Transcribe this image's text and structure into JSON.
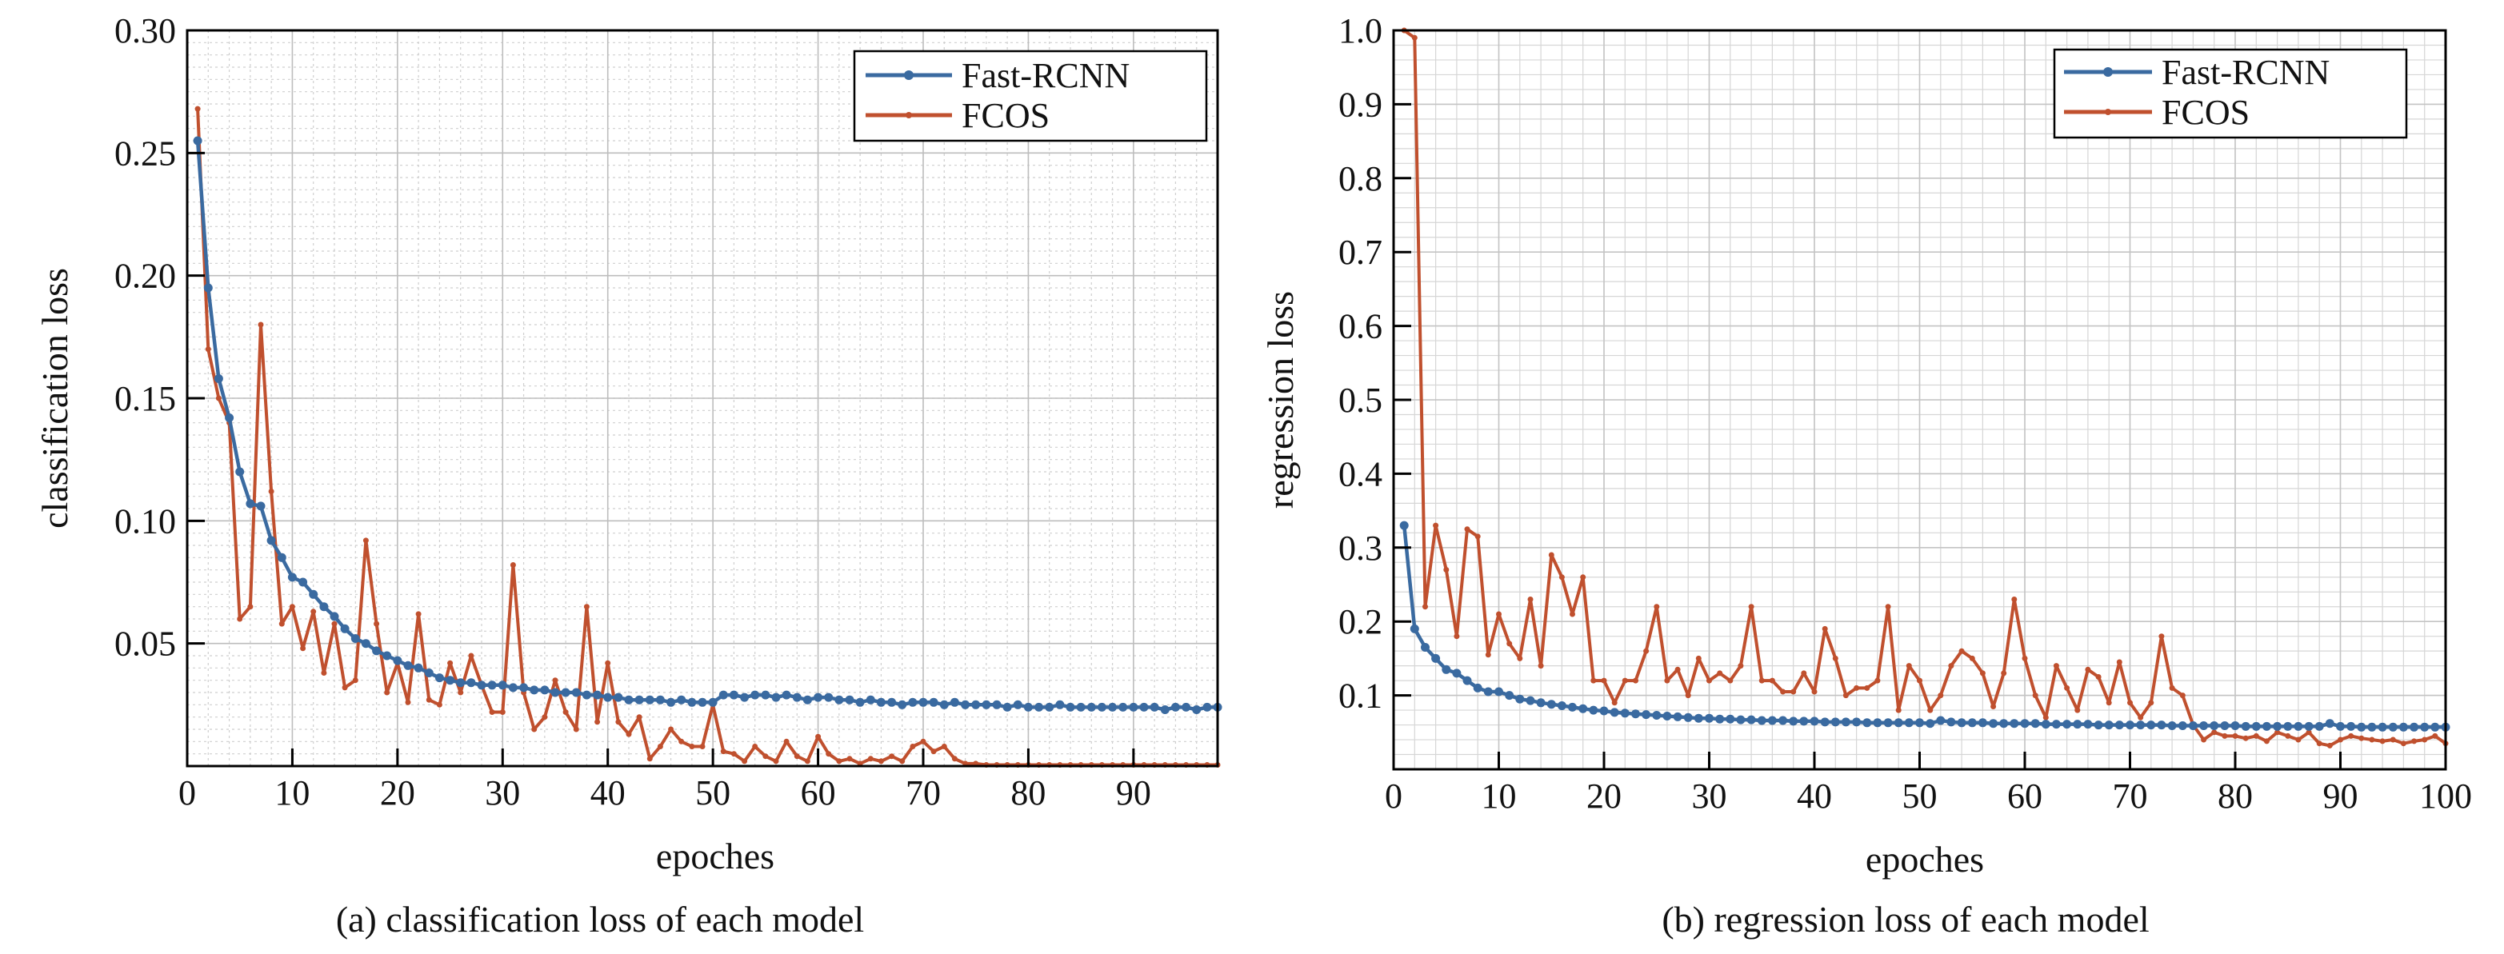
{
  "chart_data": [
    {
      "type": "line",
      "caption": "(a) classification loss of each model",
      "xlabel": "epoches",
      "ylabel": "classification loss",
      "xlim": [
        0,
        98
      ],
      "ylim": [
        0,
        0.3
      ],
      "xticks": [
        0,
        10,
        20,
        30,
        40,
        50,
        60,
        70,
        80,
        90
      ],
      "xtick_labels": [
        "0",
        "10",
        "20",
        "30",
        "40",
        "50",
        "60",
        "70",
        "80",
        "90"
      ],
      "yticks": [
        0.05,
        0.1,
        0.15,
        0.2,
        0.25,
        0.3
      ],
      "ytick_labels": [
        "0.05",
        "0.10",
        "0.15",
        "0.20",
        "0.25",
        "0.30"
      ],
      "grid": true,
      "legend": "top-right",
      "series": [
        {
          "name": "Fast-RCNN",
          "color": "#3a6aa0",
          "x": [
            1,
            2,
            3,
            4,
            5,
            6,
            7,
            8,
            9,
            10,
            11,
            12,
            13,
            14,
            15,
            16,
            17,
            18,
            19,
            20,
            21,
            22,
            23,
            24,
            25,
            26,
            27,
            28,
            29,
            30,
            31,
            32,
            33,
            34,
            35,
            36,
            37,
            38,
            39,
            40,
            41,
            42,
            43,
            44,
            45,
            46,
            47,
            48,
            49,
            50,
            51,
            52,
            53,
            54,
            55,
            56,
            57,
            58,
            59,
            60,
            61,
            62,
            63,
            64,
            65,
            66,
            67,
            68,
            69,
            70,
            71,
            72,
            73,
            74,
            75,
            76,
            77,
            78,
            79,
            80,
            81,
            82,
            83,
            84,
            85,
            86,
            87,
            88,
            89,
            90,
            91,
            92,
            93,
            94,
            95,
            96,
            97,
            98
          ],
          "y": [
            0.255,
            0.195,
            0.158,
            0.142,
            0.12,
            0.107,
            0.106,
            0.092,
            0.085,
            0.077,
            0.075,
            0.07,
            0.065,
            0.061,
            0.056,
            0.052,
            0.05,
            0.047,
            0.045,
            0.043,
            0.041,
            0.04,
            0.038,
            0.036,
            0.035,
            0.034,
            0.034,
            0.033,
            0.033,
            0.033,
            0.032,
            0.032,
            0.031,
            0.031,
            0.03,
            0.03,
            0.03,
            0.029,
            0.029,
            0.028,
            0.028,
            0.027,
            0.027,
            0.027,
            0.027,
            0.026,
            0.027,
            0.026,
            0.026,
            0.026,
            0.029,
            0.029,
            0.028,
            0.029,
            0.029,
            0.028,
            0.029,
            0.028,
            0.027,
            0.028,
            0.028,
            0.027,
            0.027,
            0.026,
            0.027,
            0.026,
            0.026,
            0.025,
            0.026,
            0.026,
            0.026,
            0.025,
            0.026,
            0.025,
            0.025,
            0.025,
            0.025,
            0.024,
            0.025,
            0.024,
            0.024,
            0.024,
            0.025,
            0.024,
            0.024,
            0.024,
            0.024,
            0.024,
            0.024,
            0.024,
            0.024,
            0.024,
            0.023,
            0.024,
            0.024,
            0.023,
            0.024,
            0.024
          ]
        },
        {
          "name": "FCOS",
          "color": "#c0502e",
          "x": [
            1,
            2,
            3,
            4,
            5,
            6,
            7,
            8,
            9,
            10,
            11,
            12,
            13,
            14,
            15,
            16,
            17,
            18,
            19,
            20,
            21,
            22,
            23,
            24,
            25,
            26,
            27,
            28,
            29,
            30,
            31,
            32,
            33,
            34,
            35,
            36,
            37,
            38,
            39,
            40,
            41,
            42,
            43,
            44,
            45,
            46,
            47,
            48,
            49,
            50,
            51,
            52,
            53,
            54,
            55,
            56,
            57,
            58,
            59,
            60,
            61,
            62,
            63,
            64,
            65,
            66,
            67,
            68,
            69,
            70,
            71,
            72,
            73,
            74,
            75,
            76,
            77,
            78,
            79,
            80,
            81,
            82,
            83,
            84,
            85,
            86,
            87,
            88,
            89,
            90,
            91,
            92,
            93,
            94,
            95,
            96,
            97,
            98
          ],
          "y": [
            0.268,
            0.17,
            0.15,
            0.14,
            0.06,
            0.065,
            0.18,
            0.112,
            0.058,
            0.065,
            0.048,
            0.063,
            0.038,
            0.058,
            0.032,
            0.035,
            0.092,
            0.058,
            0.03,
            0.042,
            0.026,
            0.062,
            0.027,
            0.025,
            0.042,
            0.03,
            0.045,
            0.033,
            0.022,
            0.022,
            0.082,
            0.03,
            0.015,
            0.02,
            0.035,
            0.022,
            0.015,
            0.065,
            0.018,
            0.042,
            0.018,
            0.013,
            0.02,
            0.003,
            0.008,
            0.015,
            0.01,
            0.008,
            0.008,
            0.025,
            0.006,
            0.005,
            0.002,
            0.008,
            0.004,
            0.002,
            0.01,
            0.004,
            0.002,
            0.012,
            0.005,
            0.002,
            0.003,
            0.001,
            0.003,
            0.002,
            0.004,
            0.002,
            0.008,
            0.01,
            0.006,
            0.008,
            0.003,
            0.001,
            0.001,
            0.0005,
            0.0005,
            0.0005,
            0.0005,
            0.0005,
            0.0005,
            0.0005,
            0.0005,
            0.0005,
            0.0005,
            0.0005,
            0.0005,
            0.0005,
            0.0005,
            0.0005,
            0.0005,
            0.0005,
            0.0005,
            0.0005,
            0.0005,
            0.0005,
            0.0005,
            0.0005
          ]
        }
      ]
    },
    {
      "type": "line",
      "caption": "(b) regression loss of each model",
      "xlabel": "epoches",
      "ylabel": "regression loss",
      "xlim": [
        0,
        100
      ],
      "ylim": [
        0,
        1.0
      ],
      "xticks": [
        0,
        10,
        20,
        30,
        40,
        50,
        60,
        70,
        80,
        90,
        100
      ],
      "xtick_labels": [
        "0",
        "10",
        "20",
        "30",
        "40",
        "50",
        "60",
        "70",
        "80",
        "90",
        "100"
      ],
      "yticks": [
        0.1,
        0.2,
        0.3,
        0.4,
        0.5,
        0.6,
        0.7,
        0.8,
        0.9,
        1.0
      ],
      "ytick_labels": [
        "0.1",
        "0.2",
        "0.3",
        "0.4",
        "0.5",
        "0.6",
        "0.7",
        "0.8",
        "0.9",
        "1.0"
      ],
      "grid": true,
      "legend": "top-right",
      "series": [
        {
          "name": "Fast-RCNN",
          "color": "#3a6aa0",
          "x": [
            1,
            2,
            3,
            4,
            5,
            6,
            7,
            8,
            9,
            10,
            11,
            12,
            13,
            14,
            15,
            16,
            17,
            18,
            19,
            20,
            21,
            22,
            23,
            24,
            25,
            26,
            27,
            28,
            29,
            30,
            31,
            32,
            33,
            34,
            35,
            36,
            37,
            38,
            39,
            40,
            41,
            42,
            43,
            44,
            45,
            46,
            47,
            48,
            49,
            50,
            51,
            52,
            53,
            54,
            55,
            56,
            57,
            58,
            59,
            60,
            61,
            62,
            63,
            64,
            65,
            66,
            67,
            68,
            69,
            70,
            71,
            72,
            73,
            74,
            75,
            76,
            77,
            78,
            79,
            80,
            81,
            82,
            83,
            84,
            85,
            86,
            87,
            88,
            89,
            90,
            91,
            92,
            93,
            94,
            95,
            96,
            97,
            98,
            99,
            100
          ],
          "y": [
            0.33,
            0.19,
            0.165,
            0.15,
            0.135,
            0.13,
            0.12,
            0.11,
            0.105,
            0.105,
            0.1,
            0.095,
            0.093,
            0.09,
            0.088,
            0.086,
            0.084,
            0.082,
            0.08,
            0.079,
            0.077,
            0.076,
            0.075,
            0.074,
            0.073,
            0.072,
            0.071,
            0.07,
            0.069,
            0.069,
            0.068,
            0.068,
            0.067,
            0.067,
            0.066,
            0.066,
            0.066,
            0.065,
            0.065,
            0.065,
            0.064,
            0.064,
            0.064,
            0.064,
            0.063,
            0.063,
            0.063,
            0.063,
            0.063,
            0.063,
            0.062,
            0.066,
            0.064,
            0.063,
            0.063,
            0.063,
            0.062,
            0.062,
            0.062,
            0.062,
            0.062,
            0.061,
            0.061,
            0.061,
            0.061,
            0.061,
            0.06,
            0.06,
            0.06,
            0.06,
            0.06,
            0.06,
            0.06,
            0.059,
            0.059,
            0.059,
            0.059,
            0.059,
            0.059,
            0.059,
            0.058,
            0.058,
            0.058,
            0.058,
            0.058,
            0.058,
            0.058,
            0.058,
            0.062,
            0.058,
            0.058,
            0.057,
            0.057,
            0.057,
            0.057,
            0.057,
            0.057,
            0.057,
            0.057,
            0.057
          ]
        },
        {
          "name": "FCOS",
          "color": "#c0502e",
          "x": [
            1,
            2,
            3,
            4,
            5,
            6,
            7,
            8,
            9,
            10,
            11,
            12,
            13,
            14,
            15,
            16,
            17,
            18,
            19,
            20,
            21,
            22,
            23,
            24,
            25,
            26,
            27,
            28,
            29,
            30,
            31,
            32,
            33,
            34,
            35,
            36,
            37,
            38,
            39,
            40,
            41,
            42,
            43,
            44,
            45,
            46,
            47,
            48,
            49,
            50,
            51,
            52,
            53,
            54,
            55,
            56,
            57,
            58,
            59,
            60,
            61,
            62,
            63,
            64,
            65,
            66,
            67,
            68,
            69,
            70,
            71,
            72,
            73,
            74,
            75,
            76,
            77,
            78,
            79,
            80,
            81,
            82,
            83,
            84,
            85,
            86,
            87,
            88,
            89,
            90,
            91,
            92,
            93,
            94,
            95,
            96,
            97,
            98,
            99,
            100
          ],
          "y": [
            1.0,
            0.99,
            0.22,
            0.33,
            0.27,
            0.18,
            0.325,
            0.315,
            0.155,
            0.21,
            0.17,
            0.15,
            0.23,
            0.14,
            0.29,
            0.26,
            0.21,
            0.26,
            0.12,
            0.12,
            0.09,
            0.12,
            0.12,
            0.16,
            0.22,
            0.12,
            0.135,
            0.1,
            0.15,
            0.12,
            0.13,
            0.12,
            0.14,
            0.22,
            0.12,
            0.12,
            0.105,
            0.105,
            0.13,
            0.105,
            0.19,
            0.15,
            0.1,
            0.11,
            0.11,
            0.12,
            0.22,
            0.08,
            0.14,
            0.12,
            0.08,
            0.1,
            0.14,
            0.16,
            0.15,
            0.13,
            0.085,
            0.13,
            0.23,
            0.15,
            0.1,
            0.07,
            0.14,
            0.11,
            0.08,
            0.135,
            0.125,
            0.09,
            0.145,
            0.09,
            0.07,
            0.09,
            0.18,
            0.11,
            0.1,
            0.06,
            0.04,
            0.05,
            0.045,
            0.045,
            0.042,
            0.045,
            0.038,
            0.05,
            0.045,
            0.04,
            0.05,
            0.035,
            0.032,
            0.04,
            0.045,
            0.042,
            0.04,
            0.038,
            0.04,
            0.035,
            0.038,
            0.04,
            0.045,
            0.035
          ]
        }
      ]
    }
  ]
}
